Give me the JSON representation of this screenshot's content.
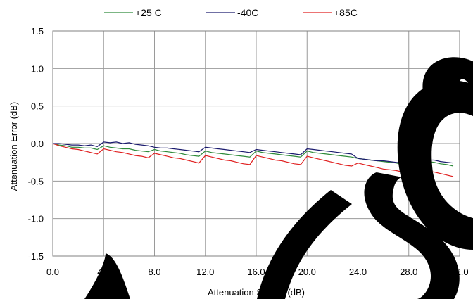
{
  "chart_data": {
    "type": "line",
    "xlabel": "Attenuation Setting (dB)",
    "ylabel": "Attenuation Error (dB)",
    "xlim": [
      0,
      32
    ],
    "ylim": [
      -1.5,
      1.5
    ],
    "x_ticks": [
      "0.0",
      "4.0",
      "8.0",
      "12.0",
      "16.0",
      "20.0",
      "24.0",
      "28.0",
      "32.0"
    ],
    "y_ticks": [
      "1.5",
      "1.0",
      "0.5",
      "0.0",
      "-0.5",
      "-1.0",
      "-1.5"
    ],
    "grid": true,
    "legend_position": "top",
    "series": [
      {
        "name": "+25 C",
        "color": "#2e8b3a",
        "x": [
          0,
          0.5,
          1,
          1.5,
          2,
          2.5,
          3,
          3.5,
          4,
          4.5,
          5,
          5.5,
          6,
          6.5,
          7,
          7.5,
          8,
          8.5,
          9,
          9.5,
          10,
          10.5,
          11,
          11.5,
          12,
          12.5,
          13,
          13.5,
          14,
          14.5,
          15,
          15.5,
          16,
          16.5,
          17,
          17.5,
          18,
          18.5,
          19,
          19.5,
          20,
          20.5,
          21,
          21.5,
          22,
          22.5,
          23,
          23.5,
          24,
          24.5,
          25,
          25.5,
          26,
          26.5,
          27,
          27.5,
          28,
          28.5,
          29,
          29.5,
          30,
          30.5,
          31,
          31.5
        ],
        "values": [
          0,
          -0.02,
          -0.03,
          -0.05,
          -0.05,
          -0.06,
          -0.06,
          -0.08,
          -0.03,
          -0.05,
          -0.06,
          -0.07,
          -0.07,
          -0.09,
          -0.1,
          -0.11,
          -0.08,
          -0.1,
          -0.11,
          -0.12,
          -0.13,
          -0.15,
          -0.16,
          -0.17,
          -0.1,
          -0.12,
          -0.13,
          -0.14,
          -0.15,
          -0.16,
          -0.17,
          -0.18,
          -0.1,
          -0.12,
          -0.13,
          -0.14,
          -0.15,
          -0.16,
          -0.17,
          -0.18,
          -0.1,
          -0.12,
          -0.13,
          -0.14,
          -0.15,
          -0.16,
          -0.17,
          -0.18,
          -0.2,
          -0.21,
          -0.22,
          -0.23,
          -0.24,
          -0.25,
          -0.26,
          -0.28,
          -0.2,
          -0.22,
          -0.23,
          -0.24,
          -0.25,
          -0.27,
          -0.28,
          -0.3
        ]
      },
      {
        "name": "-40C",
        "color": "#1a1a6e",
        "x": [
          0,
          0.5,
          1,
          1.5,
          2,
          2.5,
          3,
          3.5,
          4,
          4.5,
          5,
          5.5,
          6,
          6.5,
          7,
          7.5,
          8,
          8.5,
          9,
          9.5,
          10,
          10.5,
          11,
          11.5,
          12,
          12.5,
          13,
          13.5,
          14,
          14.5,
          15,
          15.5,
          16,
          16.5,
          17,
          17.5,
          18,
          18.5,
          19,
          19.5,
          20,
          20.5,
          21,
          21.5,
          22,
          22.5,
          23,
          23.5,
          24,
          24.5,
          25,
          25.5,
          26,
          26.5,
          27,
          27.5,
          28,
          28.5,
          29,
          29.5,
          30,
          30.5,
          31,
          31.5
        ],
        "values": [
          0,
          0,
          -0.01,
          -0.02,
          -0.02,
          -0.03,
          -0.02,
          -0.04,
          0.02,
          0.01,
          0.02,
          0,
          0.01,
          -0.01,
          -0.02,
          -0.03,
          -0.05,
          -0.06,
          -0.06,
          -0.07,
          -0.08,
          -0.09,
          -0.1,
          -0.11,
          -0.05,
          -0.06,
          -0.07,
          -0.08,
          -0.09,
          -0.1,
          -0.11,
          -0.12,
          -0.08,
          -0.09,
          -0.1,
          -0.11,
          -0.12,
          -0.13,
          -0.14,
          -0.15,
          -0.07,
          -0.08,
          -0.09,
          -0.1,
          -0.11,
          -0.12,
          -0.13,
          -0.14,
          -0.2,
          -0.21,
          -0.22,
          -0.23,
          -0.23,
          -0.24,
          -0.25,
          -0.26,
          -0.18,
          -0.2,
          -0.21,
          -0.22,
          -0.22,
          -0.24,
          -0.25,
          -0.26
        ]
      },
      {
        "name": "+85C",
        "color": "#e02020",
        "x": [
          0,
          0.5,
          1,
          1.5,
          2,
          2.5,
          3,
          3.5,
          4,
          4.5,
          5,
          5.5,
          6,
          6.5,
          7,
          7.5,
          8,
          8.5,
          9,
          9.5,
          10,
          10.5,
          11,
          11.5,
          12,
          12.5,
          13,
          13.5,
          14,
          14.5,
          15,
          15.5,
          16,
          16.5,
          17,
          17.5,
          18,
          18.5,
          19,
          19.5,
          20,
          20.5,
          21,
          21.5,
          22,
          22.5,
          23,
          23.5,
          24,
          24.5,
          25,
          25.5,
          26,
          26.5,
          27,
          27.5,
          28,
          28.5,
          29,
          29.5,
          30,
          30.5,
          31,
          31.5
        ],
        "values": [
          0,
          -0.03,
          -0.05,
          -0.07,
          -0.08,
          -0.1,
          -0.12,
          -0.14,
          -0.07,
          -0.09,
          -0.11,
          -0.12,
          -0.14,
          -0.16,
          -0.17,
          -0.19,
          -0.13,
          -0.15,
          -0.17,
          -0.19,
          -0.2,
          -0.22,
          -0.24,
          -0.26,
          -0.16,
          -0.18,
          -0.2,
          -0.22,
          -0.23,
          -0.25,
          -0.27,
          -0.28,
          -0.16,
          -0.18,
          -0.2,
          -0.22,
          -0.23,
          -0.25,
          -0.27,
          -0.28,
          -0.17,
          -0.19,
          -0.21,
          -0.23,
          -0.25,
          -0.27,
          -0.29,
          -0.3,
          -0.26,
          -0.28,
          -0.3,
          -0.32,
          -0.34,
          -0.35,
          -0.36,
          -0.38,
          -0.3,
          -0.33,
          -0.35,
          -0.37,
          -0.38,
          -0.4,
          -0.42,
          -0.44
        ]
      }
    ]
  },
  "watermark": {
    "color": "#000000"
  }
}
